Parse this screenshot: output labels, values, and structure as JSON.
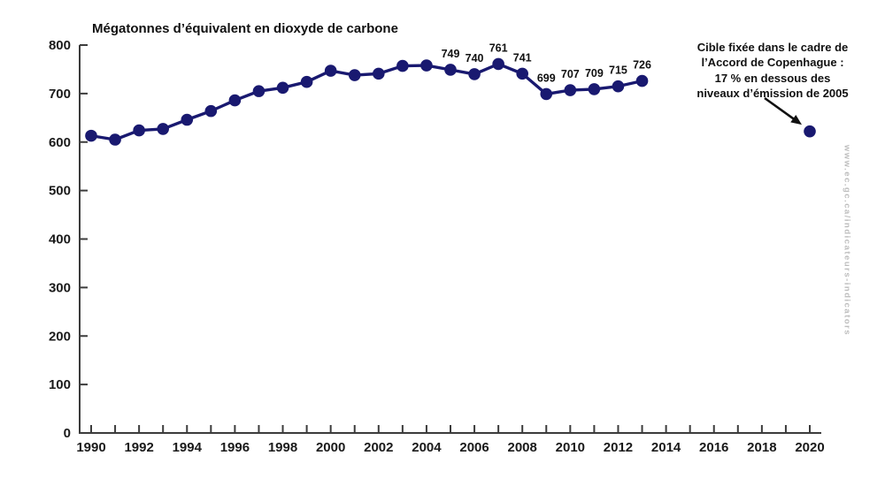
{
  "chart_data": {
    "type": "line",
    "title": "Mégatonnes d’équivalent en dioxyde de carbone",
    "x": [
      1990,
      1991,
      1992,
      1993,
      1994,
      1995,
      1996,
      1997,
      1998,
      1999,
      2000,
      2001,
      2002,
      2003,
      2004,
      2005,
      2006,
      2007,
      2008,
      2009,
      2010,
      2011,
      2012,
      2013
    ],
    "values": [
      613,
      605,
      624,
      627,
      646,
      664,
      686,
      705,
      712,
      724,
      747,
      738,
      741,
      757,
      758,
      749,
      740,
      761,
      741,
      699,
      707,
      709,
      715,
      726
    ],
    "point_labels": [
      {
        "x": 2005,
        "label": "749"
      },
      {
        "x": 2006,
        "label": "740"
      },
      {
        "x": 2007,
        "label": "761"
      },
      {
        "x": 2008,
        "label": "741"
      },
      {
        "x": 2009,
        "label": "699"
      },
      {
        "x": 2010,
        "label": "707"
      },
      {
        "x": 2011,
        "label": "709"
      },
      {
        "x": 2012,
        "label": "715"
      },
      {
        "x": 2013,
        "label": "726"
      }
    ],
    "target_point": {
      "x": 2020,
      "y": 622
    },
    "xlim": [
      1990,
      2020
    ],
    "ylim": [
      0,
      800
    ],
    "y_tick_step": 100,
    "x_tick_step": 1,
    "x_label_step": 2,
    "grid": false,
    "legend": false,
    "series_color": "#191970",
    "axis_color": "#3c3c3c",
    "tick_label_color": "#1a1a1a",
    "point_label_color": "#111111",
    "arrow_color": "#111111"
  },
  "annotation": {
    "lines": [
      "Cible fixée dans le cadre de",
      "l’Accord de Copenhague :",
      "17 % en dessous des",
      "niveaux d’émission de 2005"
    ]
  },
  "watermark": "www.ec.gc.ca/indicateurs-indicators"
}
